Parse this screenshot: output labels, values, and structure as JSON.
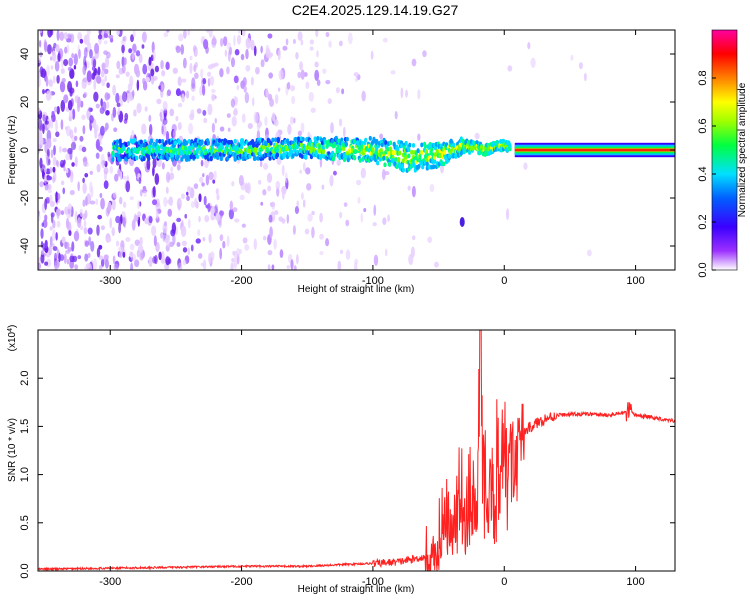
{
  "title": "C2E4.2025.129.14.19.G27",
  "chart_data": [
    {
      "type": "heatmap",
      "xlabel": "Height of straight line (km)",
      "ylabel": "Frequency (Hz)",
      "xlim": [
        -355,
        130
      ],
      "ylim": [
        -50,
        50
      ],
      "xticks": [
        -300,
        -200,
        -100,
        0,
        100
      ],
      "yticks": [
        -40,
        -20,
        0,
        20,
        40
      ],
      "colorbar": {
        "label": "Normalized spectral amplitude",
        "ticks": [
          "0.0",
          "0.2",
          "0.4",
          "0.6",
          "0.8"
        ],
        "range": [
          0,
          1
        ],
        "colormap": [
          "#ffffff",
          "#7f00ff",
          "#0000ff",
          "#00ffff",
          "#00ff00",
          "#ffff00",
          "#ff8000",
          "#ff0000",
          "#ff00ff"
        ]
      },
      "signal_band": {
        "description_points_x": [
          -300,
          -250,
          -200,
          -150,
          -100,
          -75,
          -50,
          -30,
          -15,
          0,
          10,
          130
        ],
        "center_freq": [
          0,
          0,
          0,
          1,
          0,
          -3,
          -2,
          2,
          0,
          2,
          0,
          0
        ],
        "spread": [
          4,
          4,
          4,
          4,
          5,
          6,
          5,
          3,
          2,
          2,
          1,
          1
        ]
      },
      "outliers": [
        {
          "x": -32,
          "y": -30
        }
      ]
    },
    {
      "type": "line",
      "xlabel": "Height of straight line (km)",
      "ylabel": "SNR (10 * v/v)",
      "exponent_label": "(x10",
      "exponent_sup": "4",
      "exponent_close": ")",
      "xlim": [
        -355,
        130
      ],
      "ylim": [
        0,
        2.5
      ],
      "xticks": [
        -300,
        -200,
        -100,
        0,
        100
      ],
      "yticks": [
        "0.0",
        "0.5",
        "1.0",
        "1.5",
        "2.0"
      ],
      "color": "#ff2020",
      "series": [
        {
          "x": [
            -355,
            -300,
            -250,
            -200,
            -150,
            -120,
            -100,
            -80,
            -60,
            -50,
            -45,
            -40,
            -35,
            -30,
            -25,
            -20,
            -18,
            -15,
            -10,
            -5,
            0,
            10,
            20,
            30,
            40,
            60,
            80,
            95,
            100,
            110,
            120,
            130
          ],
          "y": [
            0.02,
            0.03,
            0.04,
            0.05,
            0.05,
            0.07,
            0.08,
            0.1,
            0.15,
            0.3,
            0.7,
            0.6,
            0.9,
            0.8,
            1.0,
            1.1,
            2.5,
            1.1,
            1.2,
            1.25,
            1.3,
            1.4,
            1.5,
            1.58,
            1.62,
            1.63,
            1.62,
            1.65,
            1.62,
            1.6,
            1.58,
            1.56
          ]
        }
      ]
    }
  ]
}
